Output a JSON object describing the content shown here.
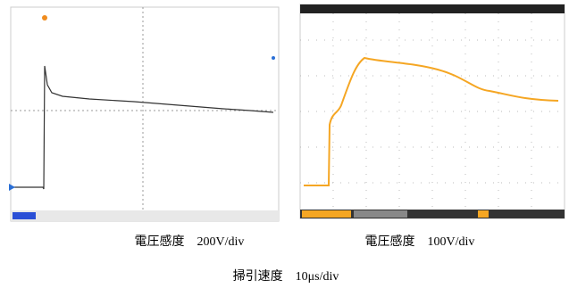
{
  "captions": {
    "left": "電圧感度　200V/div",
    "right": "電圧感度　100V/div",
    "bottom": "掃引速度　10μs/div"
  }
}
